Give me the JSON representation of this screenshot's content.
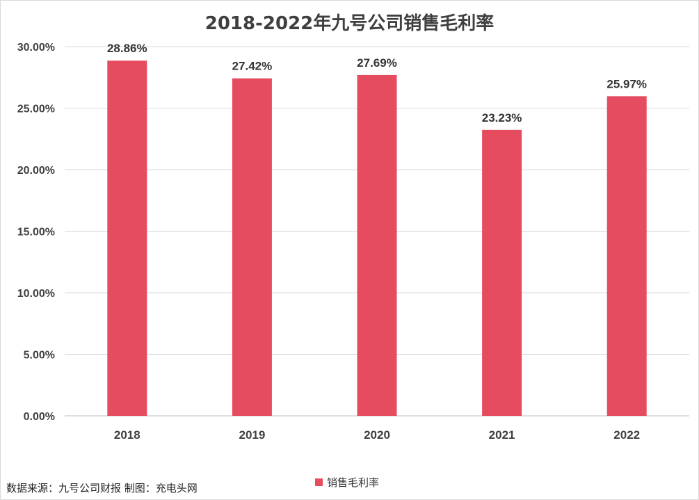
{
  "chart_data": {
    "type": "bar",
    "title": "2018-2022年九号公司销售毛利率",
    "categories": [
      "2018",
      "2019",
      "2020",
      "2021",
      "2022"
    ],
    "series": [
      {
        "name": "销售毛利率",
        "values": [
          28.86,
          27.42,
          27.69,
          23.23,
          25.97
        ],
        "labels": [
          "28.86%",
          "27.42%",
          "27.69%",
          "23.23%",
          "25.97%"
        ],
        "color": "#e64c60"
      }
    ],
    "ylim": [
      0,
      30
    ],
    "yticks": [
      0,
      5,
      10,
      15,
      20,
      25,
      30
    ],
    "ytick_labels": [
      "0.00%",
      "5.00%",
      "10.00%",
      "15.00%",
      "20.00%",
      "25.00%",
      "30.00%"
    ],
    "xlabel": "",
    "ylabel": "",
    "grid": true,
    "legend_position": "bottom"
  },
  "footer": {
    "source": "数据来源：九号公司财报  制图：充电头网"
  }
}
